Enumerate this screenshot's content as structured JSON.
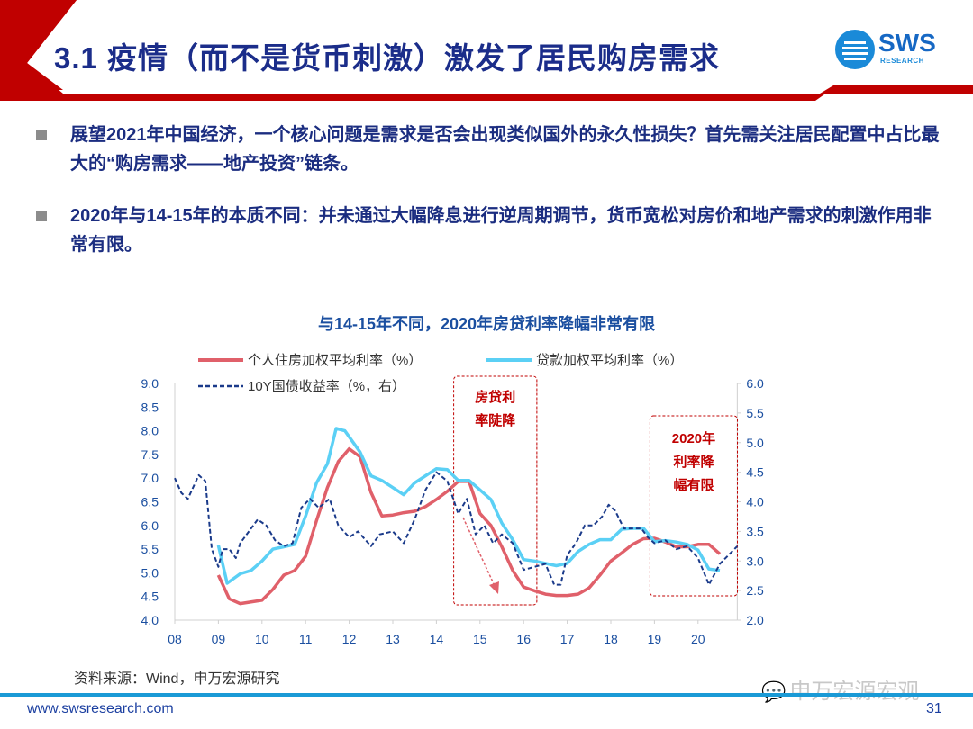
{
  "header": {
    "title": "3.1 疫情（而不是货币刺激）激发了居民购房需求"
  },
  "logo": {
    "name": "SWS",
    "sub": "RESEARCH"
  },
  "bullets": [
    {
      "text": "展望2021年中国经济，一个核心问题是需求是否会出现类似国外的永久性损失？首先需关注居民配置中占比最大的“购房需求——地产投资”链条。"
    },
    {
      "text": "2020年与14-15年的本质不同：并未通过大幅降息进行逆周期调节，货币宽松对房价和地产需求的刺激作用非常有限。"
    }
  ],
  "colors": {
    "red": "#e0606a",
    "cyan": "#5bd0f5",
    "navy": "#1a3a8a",
    "annot": "#c00000"
  },
  "chart_data": {
    "type": "line",
    "title": "与14-15年不同，2020年房贷利率降幅非常有限",
    "x_ticks": [
      "08",
      "09",
      "10",
      "11",
      "12",
      "13",
      "14",
      "15",
      "16",
      "17",
      "18",
      "19",
      "20"
    ],
    "x_range": [
      2008,
      2020.9
    ],
    "y_left_ticks": [
      "9.0",
      "8.5",
      "8.0",
      "7.5",
      "7.0",
      "6.5",
      "6.0",
      "5.5",
      "5.0",
      "4.5",
      "4.0"
    ],
    "y_left_range": [
      4.0,
      9.0
    ],
    "y_right_ticks": [
      "6.0",
      "5.5",
      "5.0",
      "4.5",
      "4.0",
      "3.5",
      "3.0",
      "2.5",
      "2.0"
    ],
    "y_right_range": [
      2.0,
      6.0
    ],
    "legend_placement": "top",
    "series": [
      {
        "name": "个人住房加权平均利率（%）",
        "axis": "left",
        "style": "solid",
        "color": "#e0606a",
        "x": [
          2009,
          2009.25,
          2009.5,
          2010,
          2010.25,
          2010.5,
          2010.75,
          2011,
          2011.25,
          2011.5,
          2011.75,
          2012,
          2012.25,
          2012.5,
          2012.75,
          2013,
          2013.25,
          2013.5,
          2013.75,
          2014,
          2014.25,
          2014.5,
          2014.75,
          2015,
          2015.25,
          2015.5,
          2015.75,
          2016,
          2016.25,
          2016.5,
          2016.75,
          2017,
          2017.25,
          2017.5,
          2017.75,
          2018,
          2018.25,
          2018.5,
          2018.75,
          2019,
          2019.25,
          2019.5,
          2019.75,
          2020,
          2020.25,
          2020.5
        ],
        "y": [
          4.95,
          4.45,
          4.35,
          4.42,
          4.65,
          4.95,
          5.05,
          5.35,
          6.1,
          6.8,
          7.35,
          7.62,
          7.45,
          6.7,
          6.2,
          6.22,
          6.27,
          6.3,
          6.4,
          6.55,
          6.72,
          6.93,
          6.93,
          6.25,
          6.0,
          5.55,
          5.05,
          4.7,
          4.62,
          4.55,
          4.52,
          4.52,
          4.55,
          4.68,
          4.95,
          5.25,
          5.42,
          5.6,
          5.72,
          5.73,
          5.65,
          5.55,
          5.55,
          5.6,
          5.6,
          5.4
        ]
      },
      {
        "name": "贷款加权平均利率（%）",
        "axis": "left",
        "style": "solid",
        "color": "#5bd0f5",
        "x": [
          2009,
          2009.2,
          2009.5,
          2009.75,
          2010,
          2010.25,
          2010.5,
          2010.75,
          2011,
          2011.25,
          2011.5,
          2011.7,
          2011.9,
          2012.25,
          2012.5,
          2012.75,
          2013,
          2013.25,
          2013.5,
          2013.75,
          2014,
          2014.25,
          2014.5,
          2014.75,
          2015,
          2015.25,
          2015.5,
          2015.75,
          2016,
          2016.25,
          2016.5,
          2016.75,
          2017,
          2017.25,
          2017.5,
          2017.75,
          2018,
          2018.25,
          2018.5,
          2018.75,
          2019,
          2019.25,
          2019.5,
          2019.75,
          2020,
          2020.25,
          2020.5
        ],
        "y": [
          5.58,
          4.78,
          4.98,
          5.05,
          5.25,
          5.5,
          5.55,
          5.6,
          6.2,
          6.9,
          7.3,
          8.05,
          8.0,
          7.55,
          7.05,
          6.95,
          6.8,
          6.65,
          6.9,
          7.05,
          7.2,
          7.18,
          6.95,
          6.95,
          6.75,
          6.55,
          6.05,
          5.7,
          5.28,
          5.25,
          5.2,
          5.15,
          5.2,
          5.45,
          5.6,
          5.7,
          5.7,
          5.92,
          5.94,
          5.94,
          5.66,
          5.68,
          5.65,
          5.6,
          5.48,
          5.08,
          5.05
        ]
      },
      {
        "name": "10Y国债收益率（%，右）",
        "axis": "right",
        "style": "dashed",
        "color": "#1a3a8a",
        "x": [
          2008,
          2008.15,
          2008.3,
          2008.55,
          2008.7,
          2008.85,
          2009,
          2009.1,
          2009.25,
          2009.4,
          2009.5,
          2009.7,
          2009.9,
          2010.1,
          2010.3,
          2010.5,
          2010.7,
          2010.9,
          2011.1,
          2011.3,
          2011.55,
          2011.75,
          2012,
          2012.2,
          2012.5,
          2012.7,
          2013,
          2013.25,
          2013.5,
          2013.75,
          2014,
          2014.25,
          2014.5,
          2014.7,
          2014.9,
          2015.1,
          2015.3,
          2015.5,
          2015.75,
          2016,
          2016.25,
          2016.5,
          2016.7,
          2016.85,
          2017,
          2017.2,
          2017.4,
          2017.6,
          2017.8,
          2017.95,
          2018.1,
          2018.3,
          2018.5,
          2018.7,
          2018.85,
          2019,
          2019.25,
          2019.5,
          2019.75,
          2020,
          2020.25,
          2020.5,
          2020.9
        ],
        "y": [
          4.4,
          4.15,
          4.05,
          4.45,
          4.35,
          3.2,
          2.9,
          3.2,
          3.2,
          3.05,
          3.3,
          3.5,
          3.7,
          3.6,
          3.35,
          3.25,
          3.3,
          3.9,
          4.05,
          3.9,
          4.05,
          3.6,
          3.4,
          3.5,
          3.25,
          3.45,
          3.5,
          3.3,
          3.7,
          4.2,
          4.5,
          4.35,
          3.8,
          4.05,
          3.45,
          3.6,
          3.3,
          3.45,
          3.3,
          2.85,
          2.9,
          2.95,
          2.6,
          2.6,
          3.1,
          3.3,
          3.6,
          3.6,
          3.75,
          3.95,
          3.85,
          3.55,
          3.55,
          3.55,
          3.4,
          3.3,
          3.35,
          3.2,
          3.25,
          3.05,
          2.6,
          2.95,
          3.25
        ]
      }
    ],
    "annotations": [
      {
        "text": "房贷利率陡降",
        "lines": [
          "房贷利",
          "率陡降"
        ],
        "period": [
          2014.5,
          2016.2
        ]
      },
      {
        "text": "2020年利率降幅有限",
        "lines": [
          "2020年",
          "利率降",
          "幅有限"
        ],
        "period": [
          2019.0,
          2020.8
        ]
      }
    ]
  },
  "footer": {
    "source": "资料来源：Wind，申万宏源研究",
    "url": "www.swsresearch.com",
    "page": "31",
    "watermark": "申万宏源宏观"
  }
}
